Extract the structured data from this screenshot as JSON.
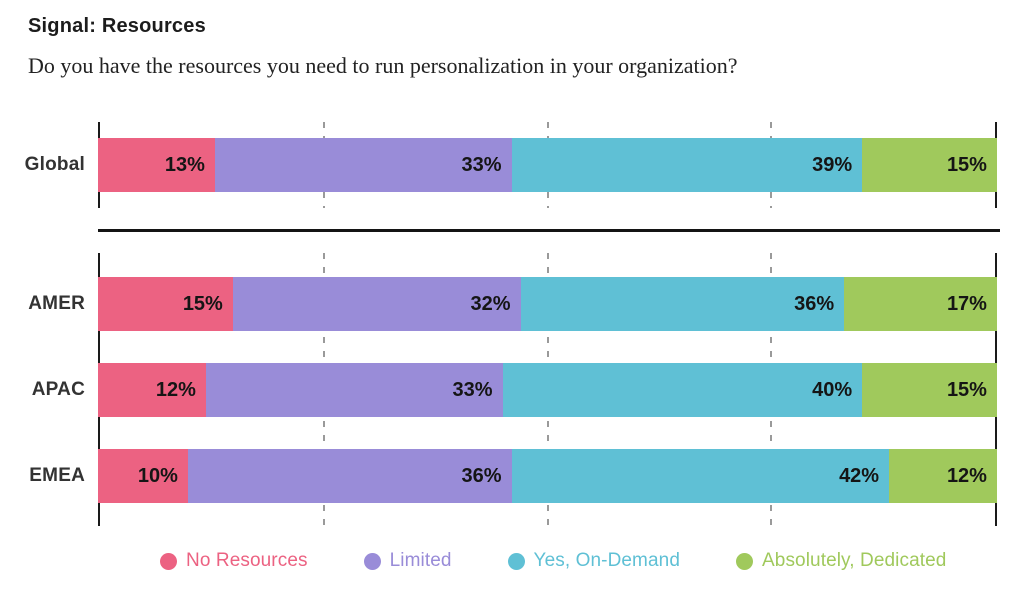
{
  "title": "Signal: Resources",
  "subtitle": "Do you have the resources you need to run personalization in your organization?",
  "chart_data": {
    "type": "bar",
    "variant": "horizontal-stacked",
    "stack_total": 100,
    "value_suffix": "%",
    "gridlines_percent": [
      25,
      50,
      75
    ],
    "grid": "dashed-vertical",
    "segments": [
      {
        "name": "No Resources",
        "color": "#EC6282"
      },
      {
        "name": "Limited",
        "color": "#998CD8"
      },
      {
        "name": "Yes, On-Demand",
        "color": "#5FC0D5"
      },
      {
        "name": "Absolutely, Dedicated",
        "color": "#A0C95C"
      }
    ],
    "groups": [
      {
        "name": "global",
        "rows": [
          {
            "label": "Global",
            "values": [
              13,
              33,
              39,
              15
            ]
          }
        ]
      },
      {
        "name": "regions",
        "rows": [
          {
            "label": "AMER",
            "values": [
              15,
              32,
              36,
              17
            ]
          },
          {
            "label": "APAC",
            "values": [
              12,
              33,
              40,
              15
            ]
          },
          {
            "label": "EMEA",
            "values": [
              10,
              36,
              42,
              12
            ]
          }
        ]
      }
    ],
    "legend_position": "bottom"
  }
}
